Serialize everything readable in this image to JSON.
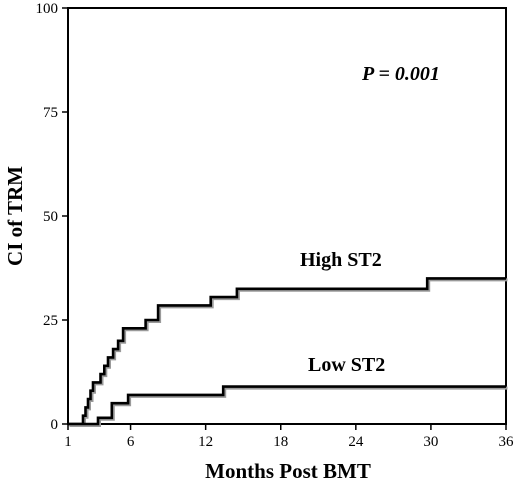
{
  "chart_data": {
    "type": "line",
    "step": true,
    "xlabel": "Months Post BMT",
    "ylabel": "CI of TRM",
    "xlim": [
      1,
      36
    ],
    "ylim": [
      0,
      100
    ],
    "x_ticks": [
      1,
      6,
      12,
      18,
      24,
      30,
      36
    ],
    "y_ticks": [
      0,
      25,
      50,
      75,
      100
    ],
    "annotation": "P = 0.001",
    "series": [
      {
        "name": "High ST2",
        "points": [
          [
            1,
            0
          ],
          [
            2.2,
            0
          ],
          [
            2.2,
            2
          ],
          [
            2.4,
            2
          ],
          [
            2.4,
            4
          ],
          [
            2.6,
            4
          ],
          [
            2.6,
            6
          ],
          [
            2.8,
            6
          ],
          [
            2.8,
            8
          ],
          [
            3.0,
            8
          ],
          [
            3.0,
            10
          ],
          [
            3.6,
            10
          ],
          [
            3.6,
            12
          ],
          [
            3.9,
            12
          ],
          [
            3.9,
            14
          ],
          [
            4.2,
            14
          ],
          [
            4.2,
            16
          ],
          [
            4.6,
            16
          ],
          [
            4.6,
            18
          ],
          [
            5.0,
            18
          ],
          [
            5.0,
            20
          ],
          [
            5.4,
            20
          ],
          [
            5.4,
            23
          ],
          [
            7.2,
            23
          ],
          [
            7.2,
            25
          ],
          [
            8.2,
            25
          ],
          [
            8.2,
            28.5
          ],
          [
            12.4,
            28.5
          ],
          [
            12.4,
            30.5
          ],
          [
            14.5,
            30.5
          ],
          [
            14.5,
            32.5
          ],
          [
            29.7,
            32.5
          ],
          [
            29.7,
            35
          ],
          [
            36,
            35
          ]
        ]
      },
      {
        "name": "Low ST2",
        "points": [
          [
            1,
            0
          ],
          [
            3.4,
            0
          ],
          [
            3.4,
            1.5
          ],
          [
            4.5,
            1.5
          ],
          [
            4.5,
            5
          ],
          [
            5.8,
            5
          ],
          [
            5.8,
            7
          ],
          [
            13.4,
            7
          ],
          [
            13.4,
            9
          ],
          [
            36,
            9
          ]
        ]
      }
    ]
  }
}
